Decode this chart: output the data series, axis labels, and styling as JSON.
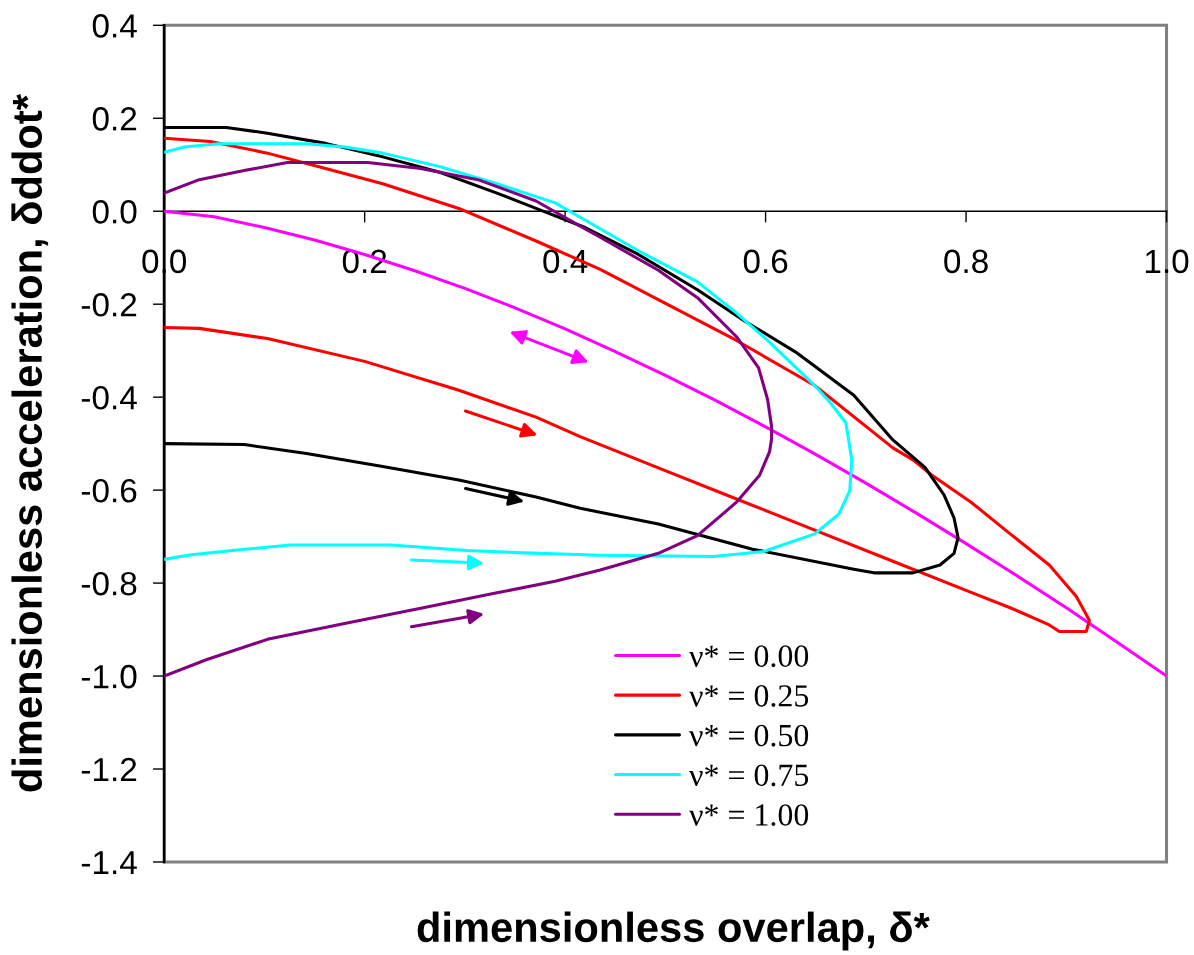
{
  "chart_data": {
    "type": "line",
    "xlabel": "dimensionless overlap, δ*",
    "ylabel": "dimensionless acceleration, δddot*",
    "xlim": [
      0,
      1
    ],
    "ylim": [
      -1.4,
      0.4
    ],
    "xticks": [
      {
        "value": 0,
        "label": "0.0"
      },
      0.2,
      0.4,
      0.6,
      0.8,
      {
        "value": 1,
        "label": "1.0"
      }
    ],
    "yticks": [
      0.4,
      0.2,
      {
        "value": 0,
        "label": "0.0"
      },
      -0.2,
      -0.4,
      -0.6,
      -0.8,
      {
        "value": -1,
        "label": "-1.0"
      },
      -1.2,
      -1.4
    ],
    "legend": "bottom",
    "series": [
      {
        "name": "ν* = 0.00",
        "color": "#ff00ff",
        "x": [
          0,
          0.05,
          0.1,
          0.15,
          0.2,
          0.25,
          0.3,
          0.35,
          0.4,
          0.45,
          0.5,
          0.55,
          0.6,
          0.65,
          0.7,
          0.75,
          0.8,
          0.85,
          0.9,
          0.95,
          1.0
        ],
        "values": [
          0,
          -0.012,
          -0.035,
          -0.062,
          -0.093,
          -0.128,
          -0.166,
          -0.208,
          -0.253,
          -0.302,
          -0.353,
          -0.407,
          -0.464,
          -0.523,
          -0.585,
          -0.649,
          -0.715,
          -0.783,
          -0.853,
          -0.926,
          -1.0
        ]
      },
      {
        "name": "ν* = 0.25",
        "color": "#ff0000",
        "x": [
          0,
          0.035,
          0.103,
          0.2,
          0.294,
          0.371,
          0.415,
          0.493,
          0.571,
          0.649,
          0.727,
          0.805,
          0.844,
          0.883,
          0.893,
          0.92,
          0.923,
          0.91,
          0.883,
          0.844,
          0.805,
          0.766,
          0.747,
          0.727,
          0.649,
          0.571,
          0.435,
          0.371,
          0.294,
          0.218,
          0.161,
          0.103,
          0.046,
          0
        ],
        "values": [
          -0.25,
          -0.252,
          -0.274,
          -0.323,
          -0.385,
          -0.443,
          -0.485,
          -0.552,
          -0.619,
          -0.686,
          -0.753,
          -0.82,
          -0.853,
          -0.89,
          -0.904,
          -0.904,
          -0.88,
          -0.829,
          -0.761,
          -0.694,
          -0.626,
          -0.568,
          -0.535,
          -0.509,
          -0.375,
          -0.278,
          -0.125,
          -0.064,
          0.006,
          0.059,
          0.092,
          0.125,
          0.15,
          0.157
        ]
      },
      {
        "name": "ν* = 0.50",
        "color": "#000000",
        "x": [
          0,
          0.08,
          0.142,
          0.218,
          0.294,
          0.371,
          0.415,
          0.493,
          0.587,
          0.688,
          0.708,
          0.747,
          0.774,
          0.788,
          0.792,
          0.788,
          0.778,
          0.759,
          0.727,
          0.688,
          0.63,
          0.579,
          0.532,
          0.473,
          0.42,
          0.371,
          0.332,
          0.275,
          0.218,
          0.161,
          0.103,
          0.062,
          0
        ],
        "values": [
          -0.5,
          -0.502,
          -0.521,
          -0.549,
          -0.578,
          -0.615,
          -0.639,
          -0.673,
          -0.727,
          -0.77,
          -0.778,
          -0.778,
          -0.761,
          -0.736,
          -0.702,
          -0.66,
          -0.61,
          -0.551,
          -0.492,
          -0.396,
          -0.303,
          -0.236,
          -0.169,
          -0.093,
          -0.035,
          0.006,
          0.039,
          0.084,
          0.117,
          0.146,
          0.168,
          0.18,
          0.18
        ]
      },
      {
        "name": "ν* = 0.75",
        "color": "#00ffff",
        "x": [
          0,
          0.027,
          0.073,
          0.126,
          0.226,
          0.302,
          0.359,
          0.435,
          0.548,
          0.598,
          0.649,
          0.673,
          0.684,
          0.686,
          0.68,
          0.665,
          0.649,
          0.602,
          0.571,
          0.532,
          0.473,
          0.415,
          0.39,
          0.332,
          0.275,
          0.218,
          0.18,
          0.142,
          0.054,
          0.02,
          0
        ],
        "values": [
          -0.749,
          -0.739,
          -0.729,
          -0.718,
          -0.718,
          -0.73,
          -0.735,
          -0.74,
          -0.743,
          -0.732,
          -0.694,
          -0.652,
          -0.601,
          -0.534,
          -0.455,
          -0.413,
          -0.375,
          -0.278,
          -0.219,
          -0.152,
          -0.085,
          -0.013,
          0.018,
          0.059,
          0.096,
          0.125,
          0.138,
          0.145,
          0.145,
          0.138,
          0.127
        ]
      },
      {
        "name": "ν* = 1.00",
        "color": "#800080",
        "x": [
          0,
          0.042,
          0.103,
          0.18,
          0.256,
          0.332,
          0.39,
          0.435,
          0.493,
          0.532,
          0.571,
          0.594,
          0.604,
          0.606,
          0.606,
          0.602,
          0.593,
          0.571,
          0.532,
          0.493,
          0.435,
          0.415,
          0.371,
          0.313,
          0.256,
          0.203,
          0.123,
          0.081,
          0.035,
          0
        ],
        "values": [
          -1.0,
          -0.965,
          -0.921,
          -0.887,
          -0.854,
          -0.821,
          -0.796,
          -0.772,
          -0.736,
          -0.698,
          -0.626,
          -0.568,
          -0.517,
          -0.49,
          -0.463,
          -0.405,
          -0.337,
          -0.27,
          -0.186,
          -0.127,
          -0.056,
          -0.032,
          0.022,
          0.068,
          0.092,
          0.105,
          0.105,
          0.088,
          0.068,
          0.039
        ]
      }
    ]
  }
}
